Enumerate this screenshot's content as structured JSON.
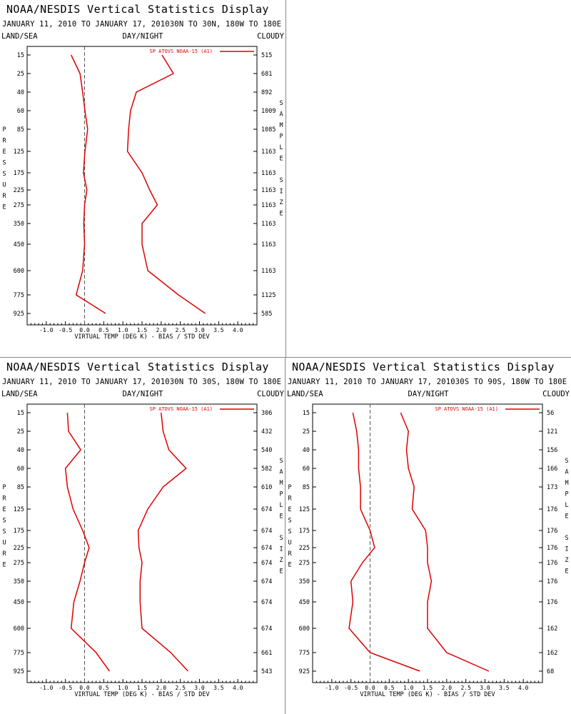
{
  "panels": [
    {
      "title": "NOAA/NESDIS Vertical Statistics Display",
      "dates": "JANUARY 11, 2010 TO JANUARY 17, 2010",
      "region": "30N TO 30N, 180W TO 180E",
      "land_sea": "LAND/SEA",
      "day_night": "DAY/NIGHT",
      "cloud": "CLOUDY"
    },
    {
      "title": "NOAA/NESDIS Vertical Statistics Display",
      "dates": "JANUARY 11, 2010 TO JANUARY 17, 2010",
      "region": "30N TO 30S, 180W TO 180E",
      "land_sea": "LAND/SEA",
      "day_night": "DAY/NIGHT",
      "cloud": "CLOUDY"
    },
    {
      "title": "NOAA/NESDIS Vertical Statistics Display",
      "dates": "JANUARY 11, 2010 TO JANUARY 17, 2010",
      "region": "30S TO 90S, 180W TO 180E",
      "land_sea": "LAND/SEA",
      "day_night": "DAY/NIGHT",
      "cloud": "CLOUDY"
    }
  ],
  "chart_data": [
    {
      "type": "line",
      "legend": "SP ATOVS NOAA-15 (A1)",
      "xlabel": "VIRTUAL TEMP (DEG K) - BIAS / STD DEV",
      "ylabel": "PRESSURE",
      "right_label": "SAMPLE SIZE",
      "pressure_levels": [
        "15",
        "25",
        "40",
        "60",
        "85",
        "125",
        "175",
        "225",
        "275",
        "350",
        "450",
        "600",
        "775",
        "925"
      ],
      "x_ticks": [
        "-1.0",
        "-0.5",
        "0.0",
        "0.5",
        "1.0",
        "1.5",
        "2.0",
        "2.5",
        "3.0",
        "3.5",
        "4.0"
      ],
      "xlim": [
        -1.5,
        4.5
      ],
      "sample_size": [
        "515",
        "681",
        "892",
        "1009",
        "1085",
        "1163",
        "1163",
        "1163",
        "1163",
        "1163",
        "1163",
        "1163",
        "1125",
        "585"
      ],
      "series": [
        {
          "name": "BIAS",
          "values": [
            -0.35,
            -0.12,
            -0.05,
            0.01,
            0.08,
            0.01,
            -0.03,
            0.06,
            0.0,
            -0.02,
            0.0,
            -0.05,
            -0.22,
            0.55
          ]
        },
        {
          "name": "STD DEV",
          "values": [
            2.02,
            2.32,
            1.35,
            1.2,
            1.15,
            1.12,
            1.5,
            1.7,
            1.9,
            1.5,
            1.5,
            1.65,
            2.45,
            3.15
          ]
        }
      ],
      "color": "#dd0000"
    },
    {
      "type": "line",
      "legend": "SP ATOVS NOAA-15 (A1)",
      "xlabel": "VIRTUAL TEMP (DEG K) - BIAS / STD DEV",
      "ylabel": "PRESSURE",
      "right_label": "SAMPLE SIZE",
      "pressure_levels": [
        "15",
        "25",
        "40",
        "60",
        "85",
        "125",
        "175",
        "225",
        "275",
        "350",
        "450",
        "600",
        "775",
        "925"
      ],
      "x_ticks": [
        "-1.0",
        "-0.5",
        "0.0",
        "0.5",
        "1.0",
        "1.5",
        "2.0",
        "2.5",
        "3.0",
        "3.5",
        "4.0"
      ],
      "xlim": [
        -1.5,
        4.5
      ],
      "sample_size": [
        "306",
        "432",
        "540",
        "582",
        "610",
        "674",
        "674",
        "674",
        "674",
        "674",
        "674",
        "674",
        "661",
        "543"
      ],
      "series": [
        {
          "name": "BIAS",
          "values": [
            -0.45,
            -0.42,
            -0.1,
            -0.5,
            -0.45,
            -0.3,
            -0.05,
            0.12,
            0.0,
            -0.12,
            -0.28,
            -0.35,
            0.3,
            0.65
          ]
        },
        {
          "name": "STD DEV",
          "values": [
            2.0,
            2.05,
            2.2,
            2.65,
            2.05,
            1.65,
            1.4,
            1.42,
            1.5,
            1.45,
            1.45,
            1.5,
            2.25,
            2.7
          ]
        }
      ],
      "color": "#dd0000"
    },
    {
      "type": "line",
      "legend": "SP ATOVS NOAA-15 (A1)",
      "xlabel": "VIRTUAL TEMP (DEG K) - BIAS / STD DEV",
      "ylabel": "PRESSURE",
      "right_label": "SAMPLE SIZE",
      "pressure_levels": [
        "15",
        "25",
        "40",
        "60",
        "85",
        "125",
        "175",
        "225",
        "275",
        "350",
        "450",
        "600",
        "775",
        "925"
      ],
      "x_ticks": [
        "-1.0",
        "-0.5",
        "0.0",
        "0.5",
        "1.0",
        "1.5",
        "2.0",
        "2.5",
        "3.0",
        "3.5",
        "4.0"
      ],
      "xlim": [
        -1.5,
        4.5
      ],
      "sample_size": [
        "56",
        "121",
        "156",
        "166",
        "173",
        "176",
        "176",
        "176",
        "176",
        "176",
        "176",
        "162",
        "162",
        "68"
      ],
      "series": [
        {
          "name": "BIAS",
          "values": [
            -0.45,
            -0.35,
            -0.3,
            -0.3,
            -0.25,
            -0.25,
            0.0,
            0.12,
            -0.2,
            -0.5,
            -0.45,
            -0.55,
            0.0,
            1.3
          ]
        },
        {
          "name": "STD DEV",
          "values": [
            0.8,
            1.0,
            0.95,
            1.0,
            1.15,
            1.1,
            1.45,
            1.5,
            1.5,
            1.6,
            1.5,
            1.5,
            2.0,
            3.1
          ]
        }
      ],
      "color": "#dd0000"
    }
  ]
}
